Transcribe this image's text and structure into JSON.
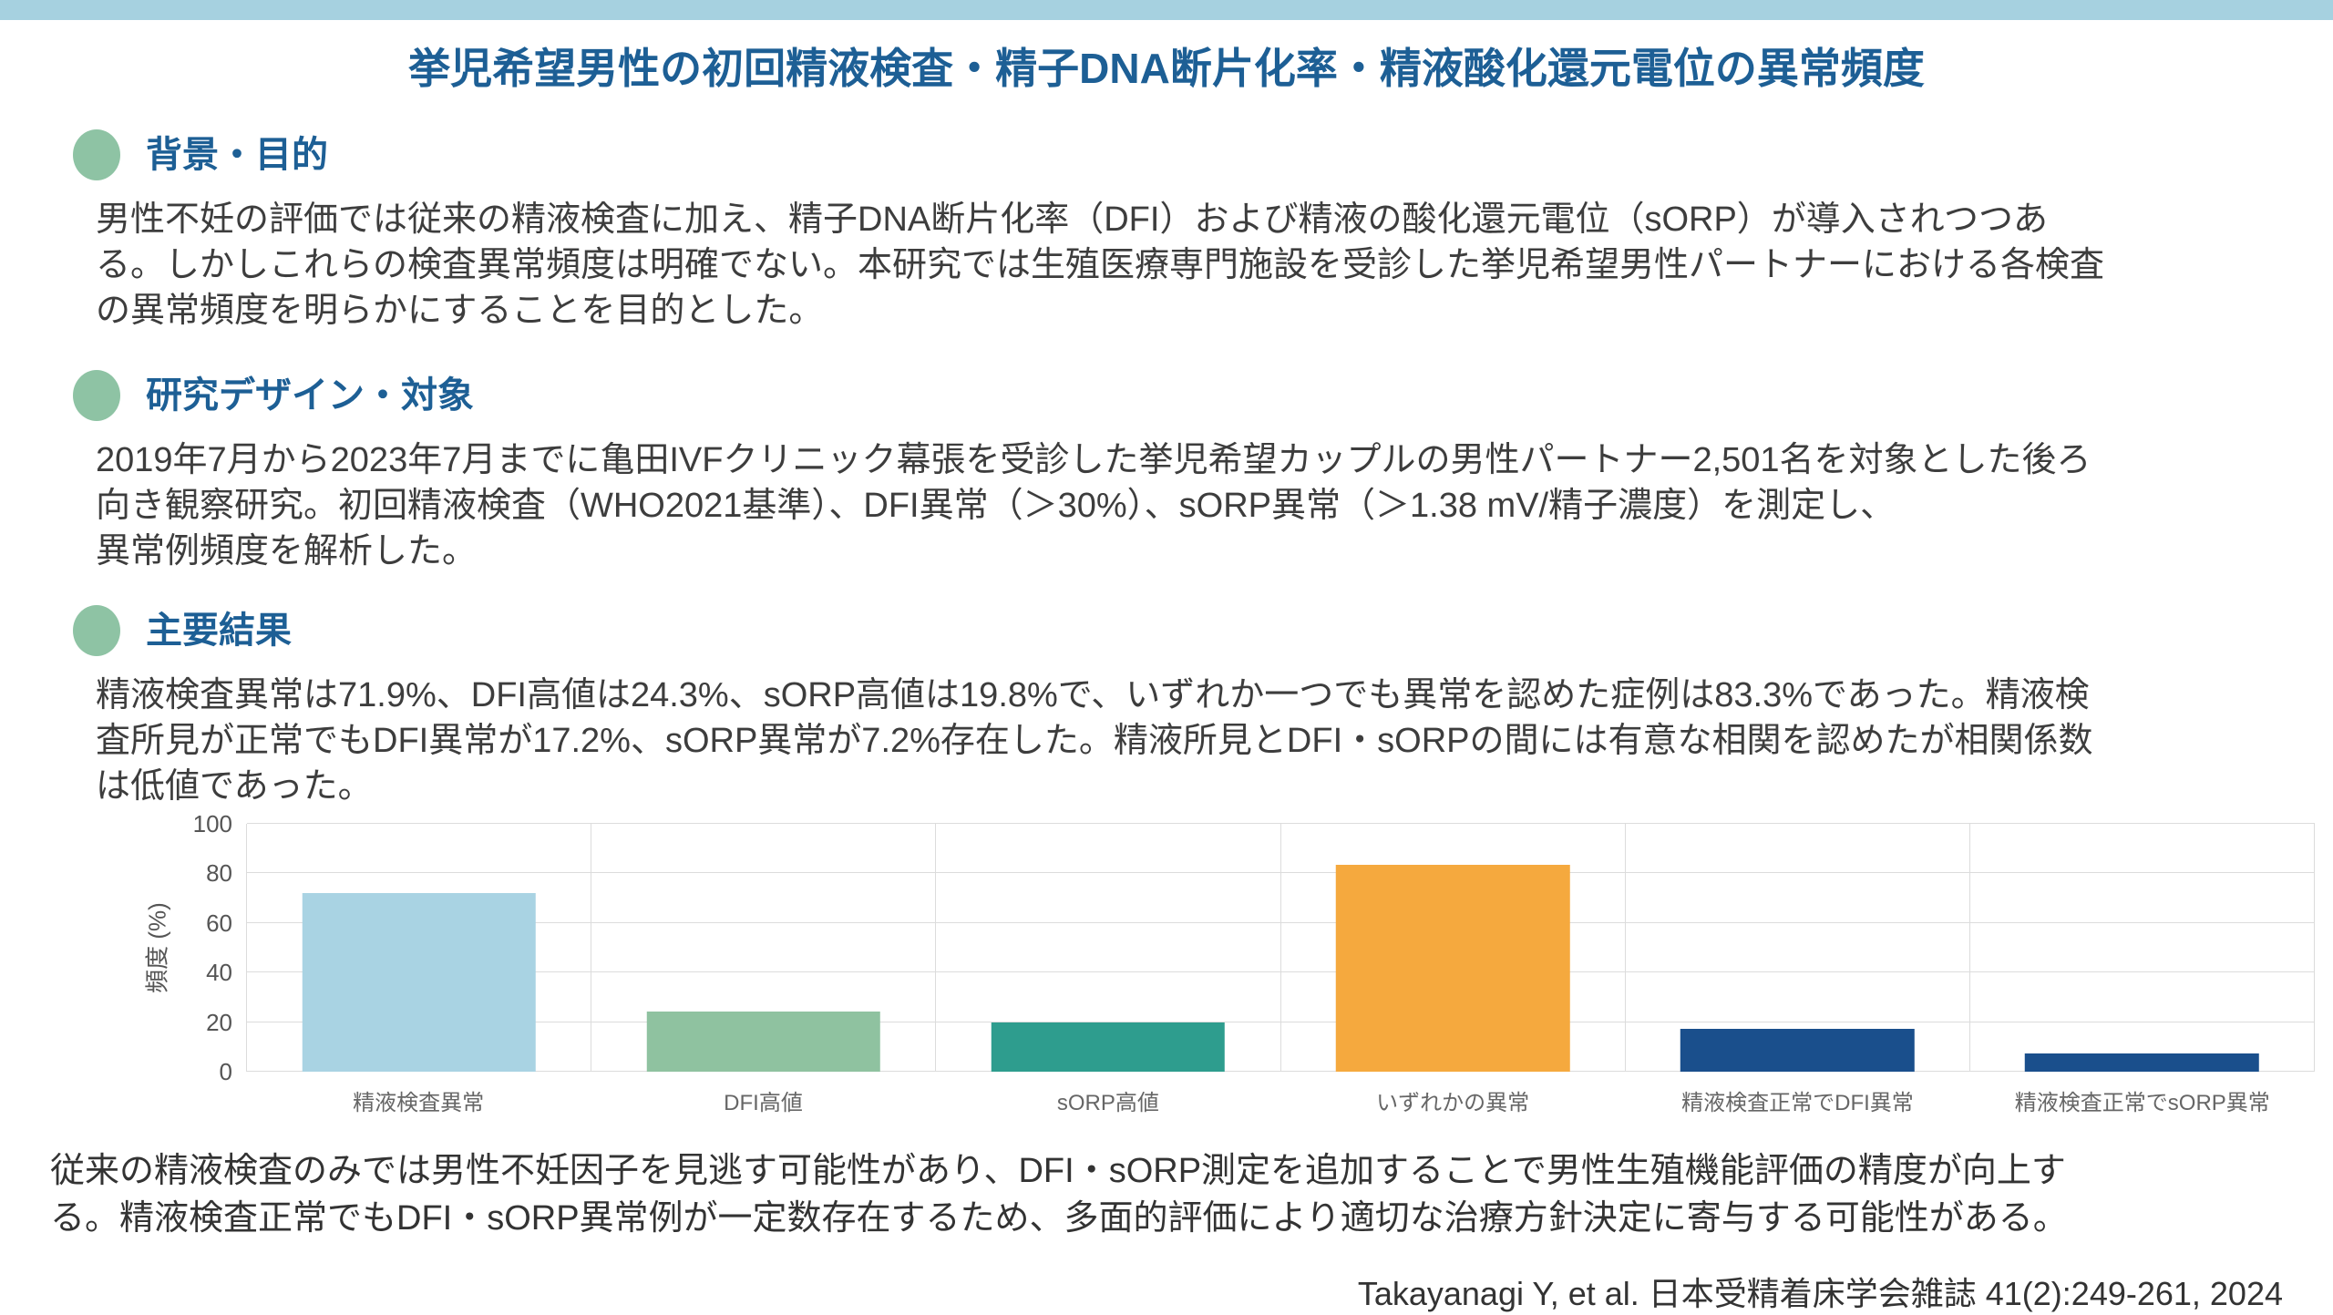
{
  "page": {
    "title": "挙児希望男性の初回精液検査・精子DNA断片化率・精液酸化還元電位の異常頻度"
  },
  "sections": [
    {
      "heading": "背景・目的",
      "body": "男性不妊の評価では従来の精液検査に加え、精子DNA断片化率（DFI）および精液の酸化還元電位（sORP）が導入されつつあ\nる。しかしこれらの検査異常頻度は明確でない。本研究では生殖医療専門施設を受診した挙児希望男性パートナーにおける各検査\nの異常頻度を明らかにすることを目的とした。"
    },
    {
      "heading": "研究デザイン・対象",
      "body": "2019年7月から2023年7月までに亀田IVFクリニック幕張を受診した挙児希望カップルの男性パートナー2,501名を対象とした後ろ\n向き観察研究。初回精液検査（WHO2021基準）、DFI異常（＞30%）、sORP異常（＞1.38 mV/精子濃度）を測定し、\n異常例頻度を解析した。"
    },
    {
      "heading": "主要結果",
      "body": "精液検査異常は71.9%、DFI高値は24.3%、sORP高値は19.8%で、いずれか一つでも異常を認めた症例は83.3%であった。精液検\n査所見が正常でもDFI異常が17.2%、sORP異常が7.2%存在した。精液所見とDFI・sORPの間には有意な相関を認めたが相関係数\nは低値であった。"
    }
  ],
  "chart_data": {
    "type": "bar",
    "categories": [
      "精液検査異常",
      "DFI高値",
      "sORP高値",
      "いずれかの異常",
      "精液検査正常でDFI異常",
      "精液検査正常でsORP異常"
    ],
    "values": [
      71.9,
      24.3,
      19.8,
      83.3,
      17.2,
      7.2
    ],
    "bar_colors": [
      "#a9d3e3",
      "#8fc2a0",
      "#2e9d8e",
      "#f5a93e",
      "#1a4f8c",
      "#1a4f8c"
    ],
    "title": "",
    "xlabel": "",
    "ylabel": "頻度 (%)",
    "yticks": [
      0,
      20,
      40,
      60,
      80,
      100
    ],
    "ylim": [
      0,
      100
    ],
    "grid": true,
    "legend": "none"
  },
  "conclusion": "従来の精液検査のみでは男性不妊因子を見逃す可能性があり、DFI・sORP測定を追加することで男性生殖機能評価の精度が向上す\nる。精液検査正常でもDFI・sORP異常例が一定数存在するため、多面的評価により適切な治療方針決定に寄与する可能性がある。",
  "citation": "Takayanagi Y, et al. 日本受精着床学会雑誌 41(2):249-261, 2024",
  "colors": {
    "top_bar": "#a6d1e0",
    "heading_blue": "#1d5f95",
    "bullet_green": "#8ec3a4",
    "gridline": "#dcdcdc",
    "body_text": "#3d3d3d"
  }
}
